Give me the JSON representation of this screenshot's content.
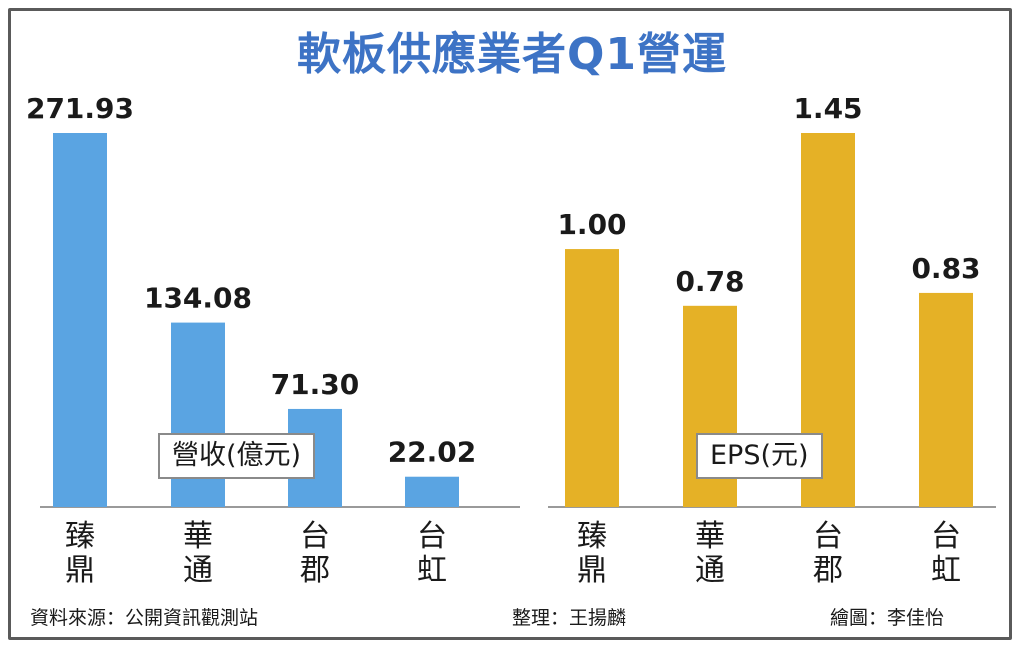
{
  "title": "軟板供應業者Q1營運",
  "footer": {
    "source": "資料來源：公開資訊觀測站",
    "editor": "整理：王揚麟",
    "illustrator": "繪圖：李佳怡"
  },
  "colors": {
    "title": "#3d73c5",
    "revenue_bar": "#5aa4e2",
    "eps_bar": "#e5b126"
  },
  "chart_data": [
    {
      "type": "bar",
      "legend": "營收(億元)",
      "categories": [
        "臻鼎",
        "華通",
        "台郡",
        "台虹"
      ],
      "values": [
        271.93,
        134.08,
        71.3,
        22.02
      ],
      "value_labels": [
        "271.93",
        "134.08",
        "71.30",
        "22.02"
      ],
      "ylim": [
        0,
        271.93
      ]
    },
    {
      "type": "bar",
      "legend": "EPS(元)",
      "categories": [
        "臻鼎",
        "華通",
        "台郡",
        "台虹"
      ],
      "values": [
        1.0,
        0.78,
        1.45,
        0.83
      ],
      "value_labels": [
        "1.00",
        "0.78",
        "1.45",
        "0.83"
      ],
      "ylim": [
        0,
        1.45
      ]
    }
  ]
}
